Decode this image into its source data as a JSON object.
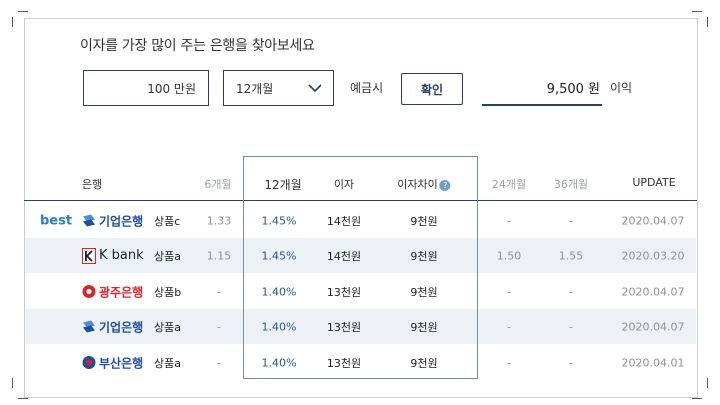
{
  "form": {
    "headline": "이자를 가장 많이 주는 은행을 찾아보세요",
    "amount_value": "100 만원",
    "period_value": "12개월",
    "deposit_label": "예금시",
    "confirm_label": "확인",
    "result_value": "9,500 원",
    "interest_label": "이익"
  },
  "table": {
    "headers": {
      "bank": "은행",
      "m6": "6개월",
      "m12": "12개월",
      "interest": "이자",
      "diff": "이자차이",
      "m24": "24개월",
      "m36": "36개월",
      "update": "UPDATE"
    },
    "best_label": "best",
    "rows": [
      {
        "bank": "기업은행",
        "product": "상품c",
        "m6": "1.33",
        "m12": "1.45%",
        "interest": "14천원",
        "diff": "9천원",
        "m24": "-",
        "m36": "-",
        "update": "2020.04.07"
      },
      {
        "bank": "K bank",
        "product": "상품a",
        "m6": "1.15",
        "m12": "1.45%",
        "interest": "14천원",
        "diff": "9천원",
        "m24": "1.50",
        "m36": "1.55",
        "update": "2020.03.20"
      },
      {
        "bank": "광주은행",
        "product": "상품b",
        "m6": "-",
        "m12": "1.40%",
        "interest": "13천원",
        "diff": "9천원",
        "m24": "-",
        "m36": "-",
        "update": "2020.04.07"
      },
      {
        "bank": "기업은행",
        "product": "상품a",
        "m6": "-",
        "m12": "1.40%",
        "interest": "13천원",
        "diff": "9천원",
        "m24": "-",
        "m36": "-",
        "update": "2020.04.07"
      },
      {
        "bank": "부산은행",
        "product": "상품a",
        "m6": "-",
        "m12": "1.40%",
        "interest": "13천원",
        "diff": "9천원",
        "m24": "-",
        "m36": "-",
        "update": "2020.04.01"
      }
    ]
  },
  "colors": {
    "navy": "#2a3d66",
    "best_blue": "#2d7fc1",
    "row_shade": "#ecf1f5",
    "ibk_blue": "#1f4e9a",
    "kbank_red": "#e2231a",
    "kwangju_red": "#d7262b",
    "busan_red": "#d7262b"
  },
  "icons": [
    "chevron-down-icon",
    "info-icon",
    "ibk-logo-icon",
    "kbank-logo-icon",
    "kwangju-logo-icon",
    "busan-logo-icon"
  ]
}
